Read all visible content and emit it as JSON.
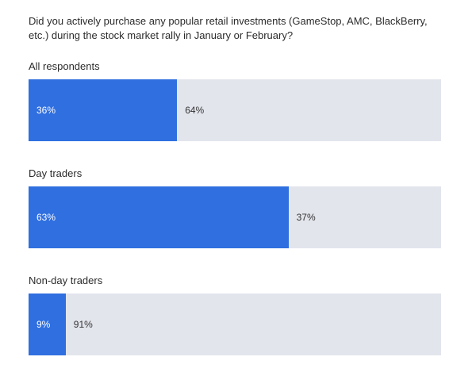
{
  "question": "Did you actively purchase any popular retail investments (GameStop, AMC, BlackBerry, etc.) during the stock market rally in January or February?",
  "colors": {
    "yes": "#2f6fe0",
    "no": "#e3e5ed"
  },
  "chart_data": {
    "type": "bar",
    "orientation": "horizontal-stacked",
    "categories": [
      "All respondents",
      "Day traders",
      "Non-day traders"
    ],
    "series": [
      {
        "values": [
          36,
          63,
          9
        ],
        "labels": [
          "36%",
          "63%",
          "9%"
        ]
      },
      {
        "values": [
          64,
          37,
          91
        ],
        "labels": [
          "64%",
          "37%",
          "91%"
        ]
      }
    ],
    "xlim": [
      0,
      100
    ],
    "grid": false
  }
}
